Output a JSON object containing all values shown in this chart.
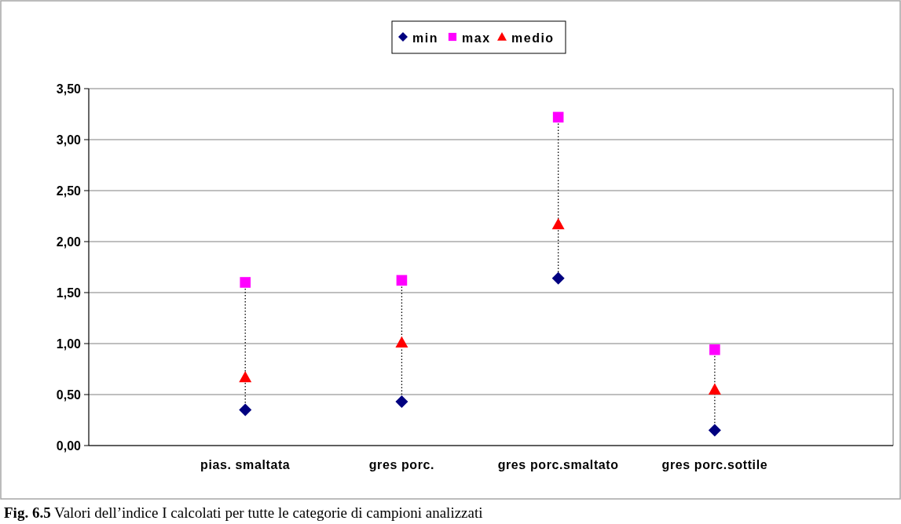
{
  "chart_data": {
    "type": "scatter",
    "categories": [
      "pias. smaltata",
      "gres porc.",
      "gres porc.smaltato",
      "gres porc.sottile"
    ],
    "series": [
      {
        "name": "min",
        "color": "#000080",
        "marker": "diamond",
        "values": [
          0.35,
          0.43,
          1.64,
          0.15
        ]
      },
      {
        "name": "max",
        "color": "#ff00ff",
        "marker": "square",
        "values": [
          1.6,
          1.62,
          3.22,
          0.94
        ]
      },
      {
        "name": "medio",
        "color": "#ff0000",
        "marker": "triangle",
        "values": [
          0.67,
          1.01,
          2.17,
          0.55
        ]
      }
    ],
    "ylim": [
      0,
      3.5
    ],
    "yticks": [
      {
        "value": 0,
        "label": "0,00"
      },
      {
        "value": 0.5,
        "label": "0,50"
      },
      {
        "value": 1,
        "label": "1,00"
      },
      {
        "value": 1.5,
        "label": "1,50"
      },
      {
        "value": 2,
        "label": "2,00"
      },
      {
        "value": 2.5,
        "label": "2,50"
      },
      {
        "value": 3,
        "label": "3,00"
      },
      {
        "value": 3.5,
        "label": "3,50"
      }
    ],
    "grid": "y",
    "legend": "top",
    "annotations": [
      "Fig. 6.5 Valori dell’indice I calcolati per tutte le categorie di campioni analizzati"
    ]
  }
}
